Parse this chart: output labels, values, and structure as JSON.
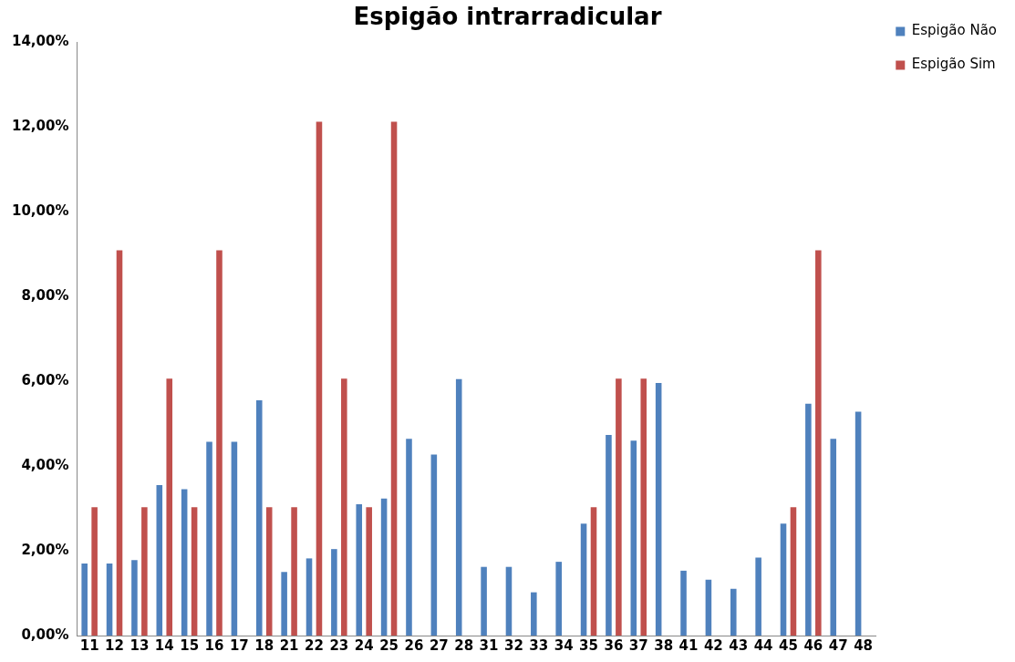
{
  "chart_data": {
    "type": "bar",
    "title": "Espigão intrarradicular",
    "categories": [
      "11",
      "12",
      "13",
      "14",
      "15",
      "16",
      "17",
      "18",
      "21",
      "22",
      "23",
      "24",
      "25",
      "26",
      "27",
      "28",
      "31",
      "32",
      "33",
      "34",
      "35",
      "36",
      "37",
      "38",
      "41",
      "42",
      "43",
      "44",
      "45",
      "46",
      "47",
      "48"
    ],
    "series": [
      {
        "name": "Espigão Não",
        "color": "#4f81bd",
        "values": [
          1.7,
          1.7,
          1.78,
          3.55,
          3.45,
          4.57,
          4.57,
          5.55,
          1.5,
          1.82,
          2.04,
          3.1,
          3.23,
          4.64,
          4.27,
          6.05,
          1.62,
          1.62,
          1.02,
          1.74,
          2.64,
          4.73,
          4.6,
          5.96,
          1.53,
          1.32,
          1.1,
          1.84,
          2.64,
          5.47,
          4.64,
          5.28
        ]
      },
      {
        "name": "Espigão Sim",
        "color": "#c0504d",
        "values": [
          3.03,
          9.09,
          3.03,
          6.06,
          3.03,
          9.09,
          0,
          3.03,
          3.03,
          12.12,
          6.06,
          3.03,
          12.12,
          0,
          0,
          0,
          0,
          0,
          0,
          0,
          3.03,
          6.06,
          6.06,
          0,
          0,
          0,
          0,
          0,
          3.03,
          9.09,
          0,
          0
        ]
      }
    ],
    "ylim": [
      0,
      14
    ],
    "yticks": [
      {
        "value": 0,
        "label": "0,00%"
      },
      {
        "value": 2,
        "label": "2,00%"
      },
      {
        "value": 4,
        "label": "4,00%"
      },
      {
        "value": 6,
        "label": "6,00%"
      },
      {
        "value": 8,
        "label": "8,00%"
      },
      {
        "value": 10,
        "label": "10,00%"
      },
      {
        "value": 12,
        "label": "12,00%"
      },
      {
        "value": 14,
        "label": "14,00%"
      }
    ],
    "grid": false,
    "legend": "top right"
  }
}
